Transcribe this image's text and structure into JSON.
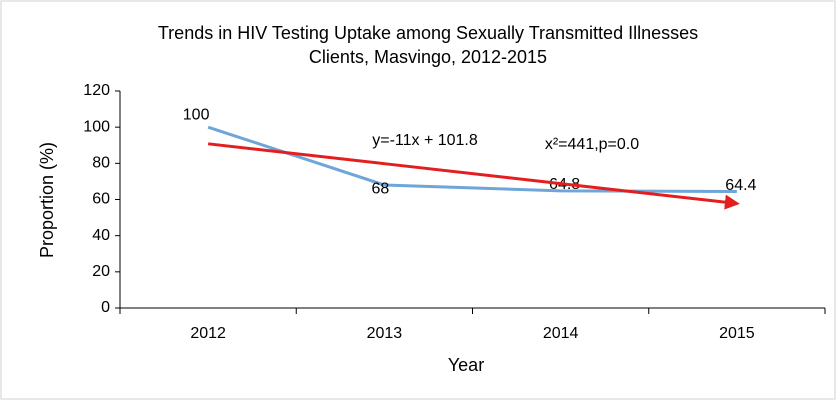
{
  "chart_data": {
    "type": "line",
    "title": [
      "Trends in HIV Testing Uptake among Sexually Transmitted Illnesses",
      "Clients, Masvingo, 2012-2015"
    ],
    "x_label": "Year",
    "y_label": "Proportion (%)",
    "categories": [
      "2012",
      "2013",
      "2014",
      "2015"
    ],
    "series": [
      {
        "color": "#6fa6d9",
        "values": [
          100,
          68,
          64.8,
          64.4
        ]
      }
    ],
    "trend": {
      "color": "#e41e1e",
      "values": [
        90.8,
        79.8,
        68.8,
        57.8
      ]
    },
    "annotations": [
      "y=-11x + 101.8",
      "x²=441,p=0.0"
    ],
    "ylim": [
      0,
      120
    ],
    "yticks": [
      0,
      20,
      40,
      60,
      80,
      100,
      120
    ],
    "grid": false
  }
}
